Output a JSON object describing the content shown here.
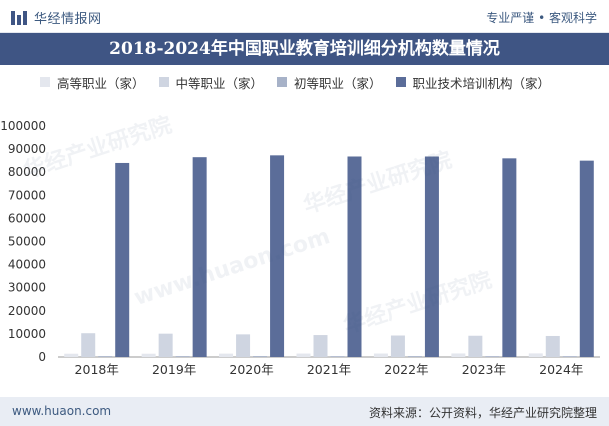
{
  "header": {
    "brand": "华经情报网",
    "tagline": "专业严谨 • 客观科学"
  },
  "chart_data": {
    "type": "bar",
    "title": "2018-2024年中国职业教育培训细分机构数量情况",
    "categories": [
      "2018年",
      "2019年",
      "2020年",
      "2021年",
      "2022年",
      "2023年",
      "2024年"
    ],
    "series": [
      {
        "name": "高等职业（家）",
        "values": [
          1420,
          1420,
          1460,
          1490,
          1500,
          1540,
          1560
        ],
        "color": "#e4e7ee"
      },
      {
        "name": "中等职业（家）",
        "values": [
          10300,
          10100,
          9800,
          9500,
          9300,
          9200,
          9100
        ],
        "color": "#cfd5e1"
      },
      {
        "name": "初等职业（家）",
        "values": [
          380,
          380,
          400,
          360,
          380,
          360,
          360
        ],
        "color": "#a7b2c8"
      },
      {
        "name": "职业技术培训机构（家）",
        "values": [
          84000,
          86500,
          87300,
          86800,
          86800,
          86000,
          85000
        ],
        "color": "#5b6d99"
      }
    ],
    "y_ticks": [
      0,
      10000,
      20000,
      30000,
      40000,
      50000,
      60000,
      70000,
      80000,
      90000,
      100000
    ],
    "ylim": [
      0,
      100000
    ],
    "xlabel": "",
    "ylabel": "",
    "legend_position": "top",
    "grid": false
  },
  "footer": {
    "website": "www.huaon.com",
    "source": "资料来源：公开资料，华经产业研究院整理"
  },
  "watermark": {
    "text": "华经产业研究院",
    "url_text": "www.huaon.com"
  }
}
